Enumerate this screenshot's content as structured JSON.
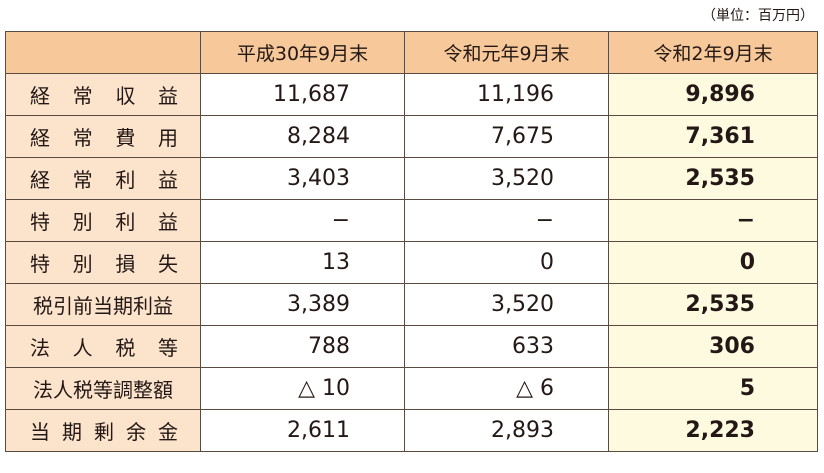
{
  "unit": "（単位：百万円）",
  "headers": [
    "",
    "平成30年9月末",
    "令和元年9月末",
    "令和2年9月末"
  ],
  "rows": [
    {
      "label": "経常収益",
      "spaced": true,
      "values": [
        "11,687",
        "11,196",
        "9,896"
      ]
    },
    {
      "label": "経常費用",
      "spaced": true,
      "values": [
        "8,284",
        "7,675",
        "7,361"
      ]
    },
    {
      "label": "経常利益",
      "spaced": true,
      "values": [
        "3,403",
        "3,520",
        "2,535"
      ]
    },
    {
      "label": "特別利益",
      "spaced": true,
      "values": [
        "−",
        "−",
        "−"
      ]
    },
    {
      "label": "特別損失",
      "spaced": true,
      "values": [
        "13",
        "0",
        "0"
      ]
    },
    {
      "label": "税引前当期利益",
      "spaced": false,
      "values": [
        "3,389",
        "3,520",
        "2,535"
      ]
    },
    {
      "label": "法人税等",
      "spaced": true,
      "values": [
        "788",
        "633",
        "306"
      ]
    },
    {
      "label": "法人税等調整額",
      "spaced": false,
      "values": [
        "△ 10",
        "△ 6",
        "5"
      ]
    },
    {
      "label": "当期剰余金",
      "spaced": true,
      "values": [
        "2,611",
        "2,893",
        "2,223"
      ]
    }
  ]
}
